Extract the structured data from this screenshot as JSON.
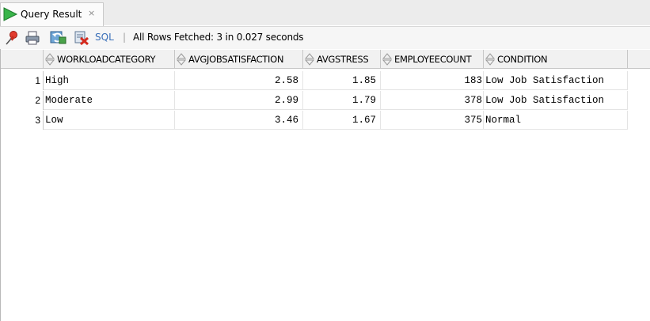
{
  "tab": {
    "title": "Query Result",
    "close_glyph": "×",
    "icon": "run-play-icon",
    "accent": "#2aa52a"
  },
  "toolbar": {
    "icons": [
      "pin-icon",
      "print-icon",
      "refresh-icon",
      "cancel-query-icon"
    ],
    "sql_label": "SQL",
    "separator": "|",
    "status": "All Rows Fetched: 3 in 0.027 seconds"
  },
  "grid": {
    "columns": [
      "WORKLOADCATEGORY",
      "AVGJOBSATISFACTION",
      "AVGSTRESS",
      "EMPLOYEECOUNT",
      "CONDITION"
    ],
    "rows": [
      {
        "num": "1",
        "workload": "High",
        "avgjob": "2.58",
        "avgstress": "1.85",
        "count": "183",
        "condition": "Low Job Satisfaction"
      },
      {
        "num": "2",
        "workload": "Moderate",
        "avgjob": "2.99",
        "avgstress": "1.79",
        "count": "378",
        "condition": "Low Job Satisfaction"
      },
      {
        "num": "3",
        "workload": "Low",
        "avgjob": "3.46",
        "avgstress": "1.67",
        "count": "375",
        "condition": "Normal"
      }
    ]
  }
}
